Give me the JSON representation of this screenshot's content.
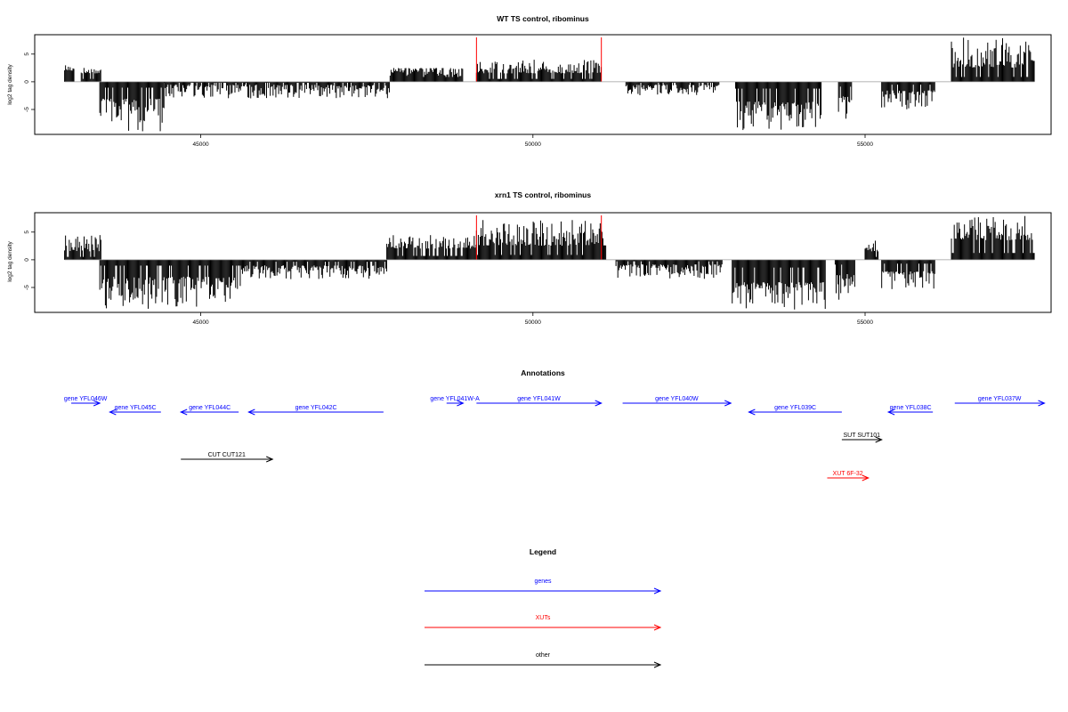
{
  "colors": {
    "genes": "#0000ff",
    "xuts": "#ff0000",
    "other": "#000000",
    "axis": "#000000",
    "baseline": "#999999"
  },
  "chart_data": [
    {
      "type": "bar",
      "title": "WT TS control, ribominus",
      "ylabel": "log2 tag density",
      "xlim": [
        42500,
        57800
      ],
      "ylim": [
        -9.5,
        8.5
      ],
      "x_ticks": [
        45000,
        50000,
        55000
      ],
      "y_ticks": [
        -5,
        0,
        5
      ],
      "grid": false,
      "markers": {
        "color": "#ff0000",
        "x": [
          49150,
          51030
        ]
      },
      "segments": [
        {
          "x": [
            42950,
            43100
          ],
          "y": [
            3.5,
            2.0
          ]
        },
        {
          "x": [
            43200,
            43500
          ],
          "y": [
            2.8,
            1.5
          ]
        },
        {
          "x": [
            43480,
            44450
          ],
          "y": [
            -9.0,
            -3.0
          ]
        },
        {
          "x": [
            44450,
            47850
          ],
          "y": [
            -3.0,
            -0.5
          ]
        },
        {
          "x": [
            47850,
            48950
          ],
          "y": [
            1.0,
            2.5
          ]
        },
        {
          "x": [
            49150,
            51030
          ],
          "y": [
            4.0,
            1.5
          ]
        },
        {
          "x": [
            51400,
            52800
          ],
          "y": [
            -2.5,
            -0.5
          ]
        },
        {
          "x": [
            53050,
            54350
          ],
          "y": [
            -9.0,
            -3.5
          ]
        },
        {
          "x": [
            54600,
            54800
          ],
          "y": [
            -7.5,
            -2.5
          ]
        },
        {
          "x": [
            55250,
            56050
          ],
          "y": [
            -5.0,
            -1.5
          ]
        },
        {
          "x": [
            56300,
            57550
          ],
          "y": [
            8.0,
            2.5
          ]
        }
      ]
    },
    {
      "type": "bar",
      "title": "xrn1 TS control, ribominus",
      "ylabel": "log2 tag density",
      "xlim": [
        42500,
        57800
      ],
      "ylim": [
        -9.5,
        8.5
      ],
      "x_ticks": [
        45000,
        50000,
        55000
      ],
      "y_ticks": [
        -5,
        0,
        5
      ],
      "grid": false,
      "markers": {
        "color": "#ff0000",
        "x": [
          49150,
          51030
        ]
      },
      "segments": [
        {
          "x": [
            42950,
            43500
          ],
          "y": [
            4.5,
            1.5
          ]
        },
        {
          "x": [
            43480,
            45600
          ],
          "y": [
            -9.0,
            -3.0
          ]
        },
        {
          "x": [
            45600,
            47800
          ],
          "y": [
            -3.5,
            -1.0
          ]
        },
        {
          "x": [
            47800,
            49150
          ],
          "y": [
            4.5,
            2.0
          ]
        },
        {
          "x": [
            49150,
            51100
          ],
          "y": [
            7.5,
            2.5
          ]
        },
        {
          "x": [
            51250,
            52850
          ],
          "y": [
            -3.5,
            -0.8
          ]
        },
        {
          "x": [
            53000,
            54400
          ],
          "y": [
            -9.0,
            -4.0
          ]
        },
        {
          "x": [
            54550,
            54850
          ],
          "y": [
            -7.5,
            -2.5
          ]
        },
        {
          "x": [
            55000,
            55200
          ],
          "y": [
            3.5,
            1.5
          ]
        },
        {
          "x": [
            55250,
            56050
          ],
          "y": [
            -5.5,
            -2.0
          ]
        },
        {
          "x": [
            56300,
            57550
          ],
          "y": [
            8.0,
            3.5
          ]
        }
      ]
    }
  ],
  "annotations": {
    "title": "Annotations",
    "xlim": [
      42500,
      57800
    ],
    "features": [
      {
        "label": "gene YFL046W",
        "type": "gene",
        "start": 43050,
        "end": 43480,
        "strand": "+",
        "row": 1
      },
      {
        "label": "gene YFL045C",
        "type": "gene",
        "start": 43630,
        "end": 44400,
        "strand": "-",
        "row": 0
      },
      {
        "label": "gene YFL044C",
        "type": "gene",
        "start": 44700,
        "end": 45570,
        "strand": "-",
        "row": 0
      },
      {
        "label": "gene YFL042C",
        "type": "gene",
        "start": 45720,
        "end": 47750,
        "strand": "-",
        "row": 0
      },
      {
        "label": "gene YFL041W-A",
        "type": "gene",
        "start": 48700,
        "end": 48950,
        "strand": "+",
        "row": 1
      },
      {
        "label": "gene YFL041W",
        "type": "gene",
        "start": 49150,
        "end": 51030,
        "strand": "+",
        "row": 1
      },
      {
        "label": "gene YFL040W",
        "type": "gene",
        "start": 51350,
        "end": 52980,
        "strand": "+",
        "row": 1
      },
      {
        "label": "gene YFL039C",
        "type": "gene",
        "start": 53250,
        "end": 54650,
        "strand": "-",
        "row": 0
      },
      {
        "label": "gene YFL038C",
        "type": "gene",
        "start": 55350,
        "end": 56020,
        "strand": "-",
        "row": 0
      },
      {
        "label": "gene YFL037W",
        "type": "gene",
        "start": 56350,
        "end": 57700,
        "strand": "+",
        "row": 1
      },
      {
        "label": "SUT SUT101",
        "type": "other",
        "start": 54650,
        "end": 55250,
        "strand": "+",
        "row": 3
      },
      {
        "label": "CUT CUT121",
        "type": "other",
        "start": 44700,
        "end": 46080,
        "strand": "+",
        "row": 4
      },
      {
        "label": "XUT 6F-32",
        "type": "xut",
        "start": 54430,
        "end": 55050,
        "strand": "+",
        "row": 5
      }
    ]
  },
  "legend": {
    "title": "Legend",
    "items": [
      {
        "label": "genes",
        "type": "gene"
      },
      {
        "label": "XUTs",
        "type": "xut"
      },
      {
        "label": "other",
        "type": "other"
      }
    ]
  }
}
